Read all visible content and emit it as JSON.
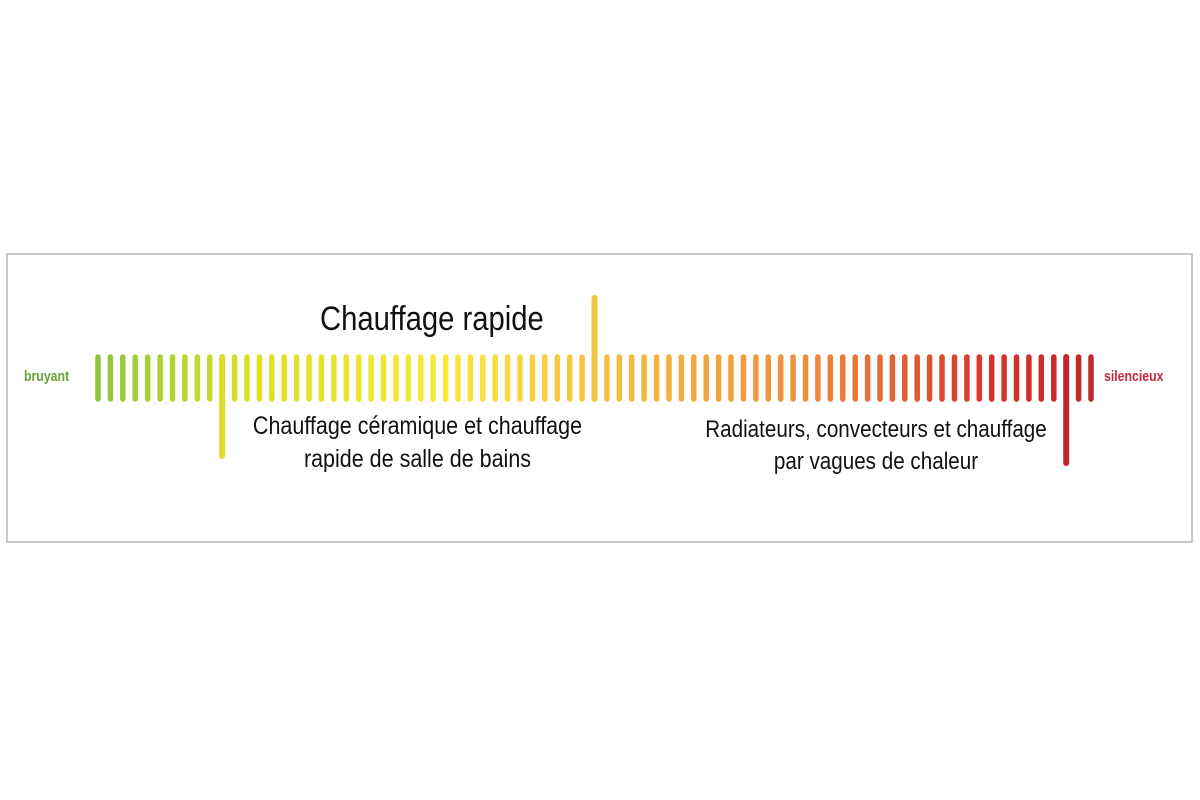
{
  "scale": {
    "left_label": "bruyant",
    "right_label": "silencieux",
    "colors": {
      "start": "#8dc63f",
      "early": "#d9e021",
      "yellow": "#f7e93a",
      "gold": "#f6c142",
      "orange": "#ee8b3a",
      "red": "#d7322a",
      "end": "#c1272d"
    },
    "tick_count": 81
  },
  "markers": [
    {
      "id": "ceramique",
      "lines": [
        "Chauffage céramique et chauffage",
        "rapide de salle de bains"
      ],
      "tick_index": 10,
      "direction": "down",
      "color": "#e0de2a"
    },
    {
      "id": "rapide",
      "lines": [
        "Chauffage rapide"
      ],
      "tick_index": 40,
      "direction": "up",
      "color": "#f3c33e"
    },
    {
      "id": "radiateurs",
      "lines": [
        "Radiateurs, convecteurs et chauffage",
        "par vagues de chaleur"
      ],
      "tick_index": 78,
      "direction": "down",
      "color": "#c1272d"
    }
  ]
}
